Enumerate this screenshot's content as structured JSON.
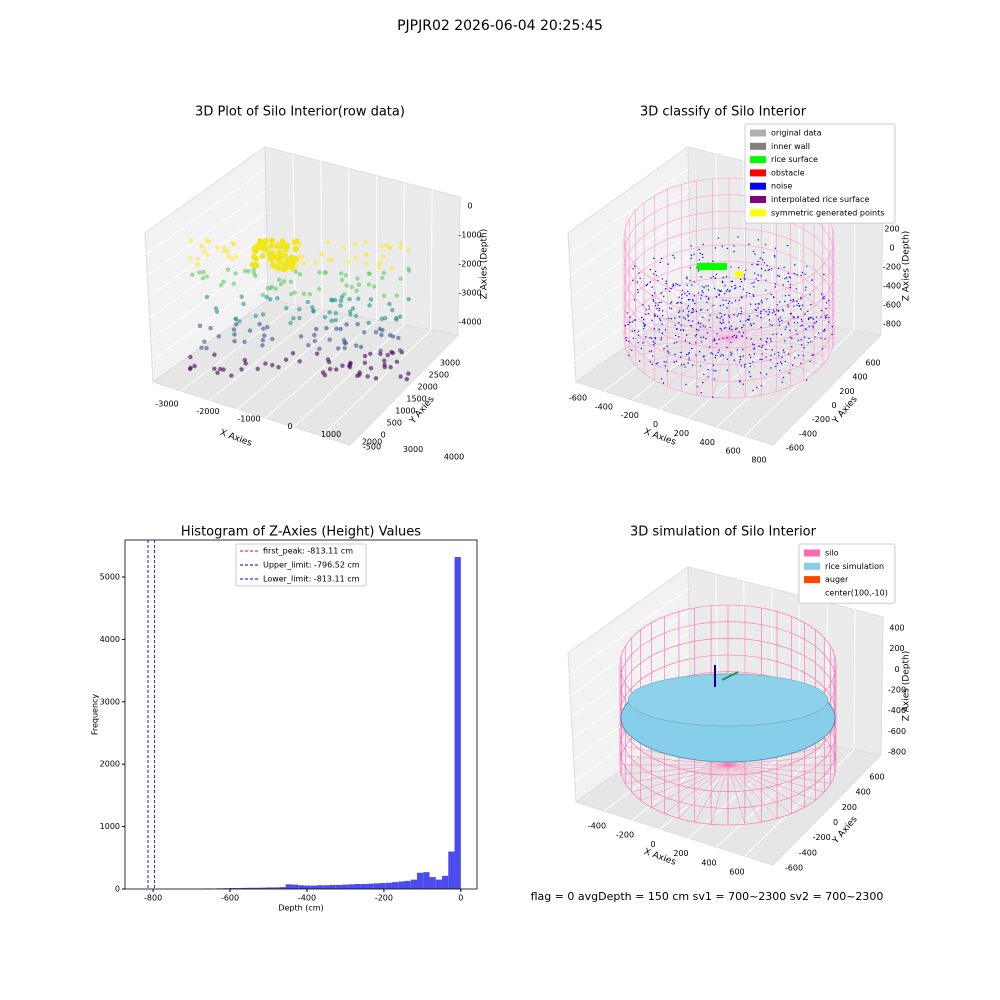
{
  "title": "PJPJR02 2026-06-04 20:25:45",
  "annotation": "flag = 0     avgDepth = 150 cm  sv1 = 700~2300  sv2 = 700~2300",
  "chart_data": [
    {
      "type": "scatter3d",
      "title": "3D Plot of Silo Interior(row data)",
      "xlabel": "X Axies",
      "ylabel": "Y Axies",
      "zlabel": "Z Axies (Depth)",
      "xticks": [
        -3000,
        -2000,
        -1000,
        0,
        1000,
        2000,
        3000,
        4000
      ],
      "yticks": [
        -500,
        0,
        500,
        1000,
        1500,
        2000,
        2500,
        3000
      ],
      "zticks": [
        0,
        -1000,
        -2000,
        -3000,
        -4000
      ]
    },
    {
      "type": "classify3d",
      "title": "3D classify of Silo Interior",
      "xlabel": "X Axies",
      "ylabel": "Y Axies",
      "zlabel": "Z Axies (Depth)",
      "xticks": [
        -600,
        -400,
        -200,
        0,
        200,
        400,
        600,
        800
      ],
      "yticks": [
        -600,
        -400,
        -200,
        0,
        200,
        400,
        600
      ],
      "zticks": [
        200,
        0,
        -200,
        -400,
        -600,
        -800
      ],
      "legend": [
        {
          "name": "original data",
          "color": "#b0b0b0"
        },
        {
          "name": "inner wall",
          "color": "#808080"
        },
        {
          "name": "rice surface",
          "color": "#00ff00"
        },
        {
          "name": "obstacle",
          "color": "#ff0000"
        },
        {
          "name": "noise",
          "color": "#0000ff"
        },
        {
          "name": "interpolated rice surface",
          "color": "#800080"
        },
        {
          "name": "symmetric generated points",
          "color": "#ffff00"
        }
      ]
    },
    {
      "type": "histogram",
      "title": "Histogram of Z-Axies (Height) Values",
      "xlabel": "Depth (cm)",
      "ylabel": "Frequency",
      "color": "#4b4bf0",
      "bins": [
        -813.11,
        -796.85,
        -780.59,
        -764.33,
        -748.07,
        -731.81,
        -715.55,
        -699.29,
        -683.03,
        -666.77,
        -650.51,
        -634.25,
        -617.99,
        -601.73,
        -585.47,
        -569.21,
        -552.95,
        -536.69,
        -520.43,
        -504.17,
        -487.91,
        -471.65,
        -455.39,
        -439.13,
        -422.87,
        -406.61,
        -390.35,
        -374.09,
        -357.83,
        -341.57,
        -325.31,
        -309.05,
        -292.79,
        -276.53,
        -260.27,
        -244.01,
        -227.75,
        -211.49,
        -195.23,
        -178.97,
        -162.71,
        -146.45,
        -130.19,
        -113.93,
        -97.67,
        -81.41,
        -65.15,
        -48.89,
        -32.63,
        -16.37,
        -0.11
      ],
      "values": [
        0,
        0,
        0,
        0,
        0,
        0,
        0,
        0,
        0,
        8,
        5,
        10,
        12,
        15,
        15,
        18,
        20,
        20,
        22,
        25,
        25,
        30,
        75,
        70,
        60,
        55,
        55,
        60,
        60,
        65,
        65,
        70,
        75,
        80,
        80,
        85,
        90,
        95,
        100,
        110,
        120,
        130,
        150,
        260,
        270,
        190,
        150,
        210,
        600,
        5320
      ],
      "xlim": [
        -873,
        42
      ],
      "ylim": [
        0,
        5593
      ],
      "xticks": [
        -800,
        -600,
        -400,
        -200,
        0
      ],
      "yticks": [
        0,
        1000,
        2000,
        3000,
        4000,
        5000
      ],
      "lines": [
        {
          "name": "first_peak: -813.11 cm",
          "value": -813.11,
          "color": "#ff0000"
        },
        {
          "name": "Upper_limit: -796.52 cm",
          "value": -796.52,
          "color": "#000080"
        },
        {
          "name": "Lower_limit: -813.11 cm",
          "value": -813.11,
          "color": "#0000ff"
        }
      ]
    },
    {
      "type": "simulation3d",
      "title": "3D simulation of Silo Interior",
      "xlabel": "X Axies",
      "ylabel": "Y Axies",
      "zlabel": "Z Axies (Depth)",
      "xticks": [
        -400,
        -200,
        0,
        200,
        400,
        600
      ],
      "yticks": [
        -600,
        -400,
        -200,
        0,
        200,
        400,
        600
      ],
      "zticks": [
        400,
        200,
        0,
        -200,
        -400,
        -600,
        -800
      ],
      "legend": [
        {
          "name": "silo",
          "color": "#ff69b4"
        },
        {
          "name": "rice simulation",
          "color": "#87ceeb"
        },
        {
          "name": "auger",
          "color": "#ff4500"
        },
        {
          "name": "center(100,-10)",
          "color": "#ffffff"
        }
      ]
    }
  ]
}
